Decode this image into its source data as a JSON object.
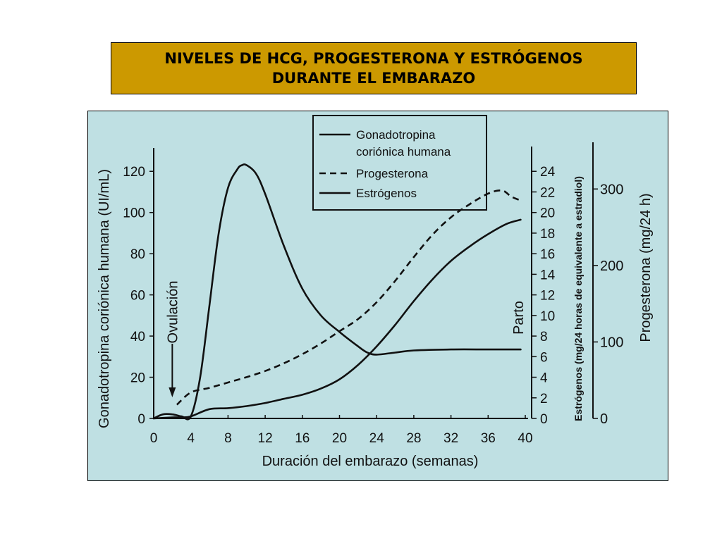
{
  "title": {
    "line1": "NIVELES DE HCG, PROGESTERONA Y ESTRÓGENOS",
    "line2": "DURANTE EL EMBARAZO"
  },
  "colors": {
    "title_bg": "#cc9900",
    "panel_bg": "#bfe0e3",
    "ink": "#111111"
  },
  "chart_data": {
    "type": "line",
    "xlabel": "Duración del embarazo (semanas)",
    "xticks": [
      0,
      4,
      8,
      12,
      16,
      20,
      24,
      28,
      32,
      36,
      40
    ],
    "xlim": [
      0,
      40
    ],
    "ylabel_left": "Gonadotropina coriónica humana (UI/mL)",
    "yticks_left": [
      0,
      20,
      40,
      60,
      80,
      100,
      120
    ],
    "ylim_left": [
      0,
      130
    ],
    "ylabel_estrogen": "Estrógenos (mg/24 horas de equivalente a estradiol)",
    "yticks_estrogen": [
      0,
      2,
      4,
      6,
      8,
      10,
      12,
      14,
      16,
      18,
      20,
      22,
      24
    ],
    "ylim_estrogen": [
      0,
      26
    ],
    "ylabel_progesterone": "Progesterona (mg/24 h)",
    "yticks_progesterone": [
      0,
      100,
      200,
      300
    ],
    "ylim_progesterone": [
      0,
      350
    ],
    "legend_position": "top-right",
    "annotations": {
      "ovulation": {
        "text": "Ovulación",
        "x": 2
      },
      "birth": {
        "text": "Parto",
        "x": 40
      }
    },
    "series": [
      {
        "name": "Gonadotropina coriónica humana",
        "axis": "left",
        "style": "solid",
        "x": [
          0,
          1,
          2,
          3,
          4,
          5,
          6,
          7,
          8,
          9,
          9.5,
          10,
          11,
          12,
          14,
          16,
          18,
          20,
          22,
          23,
          24,
          26,
          28,
          32,
          36,
          39.5
        ],
        "y": [
          0,
          2,
          2,
          1,
          1,
          20,
          55,
          90,
          112,
          121,
          123,
          123,
          119,
          109,
          84,
          63,
          50,
          42,
          35,
          32,
          31,
          32,
          33,
          33.5,
          33.5,
          33.5
        ]
      },
      {
        "name": "Progesterona",
        "axis": "progesterone",
        "style": "dashed",
        "x": [
          2.5,
          4,
          6,
          8,
          10,
          12,
          14,
          16,
          18,
          20,
          22,
          24,
          26,
          28,
          30,
          32,
          34,
          36,
          37.5,
          38.5,
          39.5
        ],
        "y": [
          18,
          34,
          40,
          47,
          54,
          62,
          72,
          84,
          98,
          114,
          130,
          152,
          180,
          211,
          240,
          263,
          280,
          294,
          298,
          290,
          285
        ]
      },
      {
        "name": "Estrógenos",
        "axis": "estrogen",
        "style": "solid",
        "x": [
          0,
          2,
          3,
          4,
          6,
          8,
          10,
          12,
          14,
          16,
          18,
          20,
          22,
          24,
          26,
          28,
          30,
          32,
          34,
          36,
          38,
          39.5
        ],
        "y": [
          0,
          0.1,
          0.1,
          0.2,
          0.9,
          1.0,
          1.2,
          1.5,
          1.9,
          2.3,
          2.9,
          3.8,
          5.2,
          7.0,
          9.1,
          11.4,
          13.5,
          15.3,
          16.7,
          17.9,
          18.9,
          19.3
        ]
      }
    ]
  }
}
